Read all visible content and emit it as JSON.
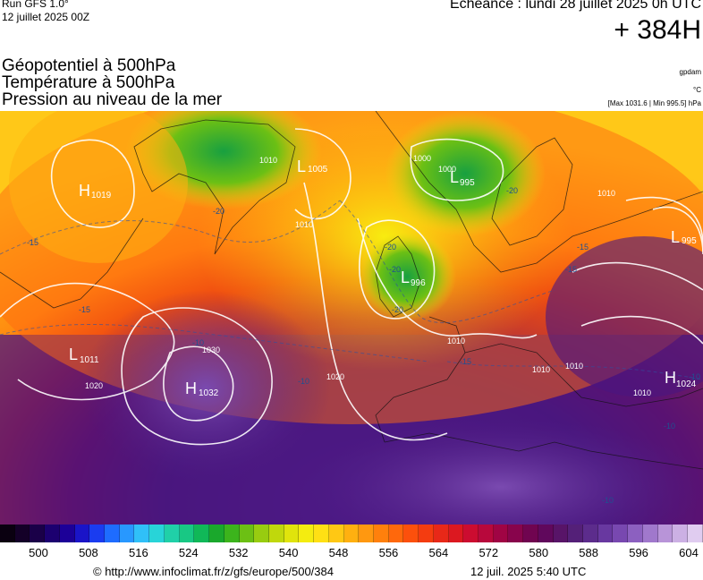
{
  "header": {
    "run_title": "Run GFS 1.0°",
    "run_date": "12 juillet 2025 00Z",
    "echeance": "Echéance : lundi 28 juillet 2025 0h UTC",
    "horizon": "+ 384H"
  },
  "layers": [
    "Géopotentiel à 500hPa",
    "Température à 500hPa",
    "Pression au niveau de la mer"
  ],
  "units": [
    "gpdam",
    "°C",
    "[Max 1031.6 | Min 995.5] hPa"
  ],
  "map": {
    "pressure_centers": [
      {
        "type": "H",
        "value": "1019"
      },
      {
        "type": "L",
        "value": "1005"
      },
      {
        "type": "L",
        "value": "995"
      },
      {
        "type": "L",
        "value": "995"
      },
      {
        "type": "L",
        "value": "996"
      },
      {
        "type": "L",
        "value": "1011"
      },
      {
        "type": "H",
        "value": "1032"
      },
      {
        "type": "H",
        "value": "1024"
      }
    ],
    "isobar_labels": [
      "1010",
      "1010",
      "1000",
      "1000",
      "1010",
      "1020",
      "1030",
      "1010",
      "1010",
      "1010",
      "1010",
      "1020"
    ],
    "temperature_labels": [
      "-20",
      "-20",
      "-20",
      "-20",
      "-20",
      "-15",
      "-15",
      "-15",
      "-15",
      "-15",
      "-10",
      "-10",
      "-10",
      "-10",
      "-10"
    ]
  },
  "colorbar": {
    "colors": [
      "#0a0010",
      "#140028",
      "#1a0048",
      "#1c0070",
      "#1c0098",
      "#1a14c8",
      "#1a3cf0",
      "#1e6cff",
      "#2898ff",
      "#30c0f8",
      "#28d4d8",
      "#20d0a8",
      "#18c884",
      "#10b858",
      "#1aa82c",
      "#3cb41c",
      "#6cc014",
      "#98cc10",
      "#c0d80c",
      "#e0e40c",
      "#f4ec10",
      "#ffe014",
      "#ffc814",
      "#ffb010",
      "#ff9810",
      "#ff800c",
      "#ff680c",
      "#fc500c",
      "#f43c10",
      "#e82818",
      "#dc1820",
      "#cc0c30",
      "#b8083c",
      "#a00444",
      "#88044c",
      "#700450",
      "#60085c",
      "#581468",
      "#542078",
      "#5c2c8c",
      "#6838a0",
      "#7848b0",
      "#8c60c0",
      "#a078cc",
      "#b894d8",
      "#ccb0e4",
      "#e0ccf0"
    ],
    "ticks": [
      "500",
      "508",
      "516",
      "524",
      "532",
      "540",
      "548",
      "556",
      "564",
      "572",
      "580",
      "588",
      "596",
      "604"
    ]
  },
  "footer": {
    "url": "© http://www.infoclimat.fr/z/gfs/europe/500/384",
    "timestamp": "12 juil. 2025  5:40 UTC"
  }
}
